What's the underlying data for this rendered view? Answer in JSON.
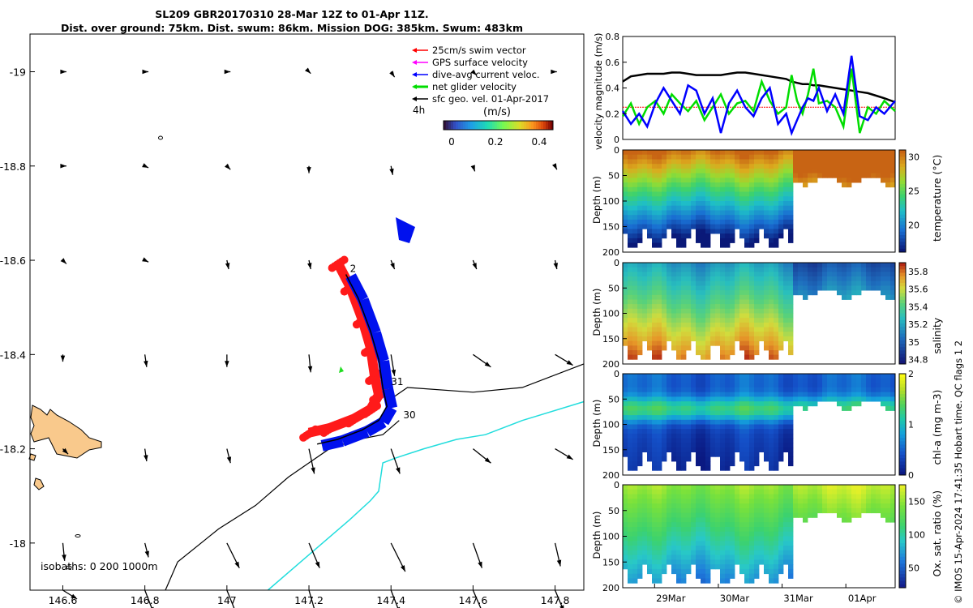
{
  "title": {
    "line1": "SL209 GBR20170310 28-Mar 12Z to 01-Apr 11Z.",
    "line2": "Dist. over ground: 75km. Dist. swum: 86km. Mission DOG: 385km. Swum: 483km"
  },
  "side_credit": "© IMOS 15-Apr-2024 17:41:35 Hobart time. QC flags 1  2",
  "chart_data": [
    {
      "type": "map",
      "name": "glider-track-map",
      "xlim": [
        146.52,
        147.87
      ],
      "ylim": [
        -19.08,
        -17.9
      ],
      "x_ticks": [
        146.6,
        146.8,
        147,
        147.2,
        147.4,
        147.6,
        147.8
      ],
      "x_tick_labels": [
        "146.6",
        "146.8",
        "147",
        "147.2",
        "147.4",
        "147.6",
        "147.8"
      ],
      "y_ticks": [
        -18,
        -18.2,
        -18.4,
        -18.6,
        -18.8,
        -19
      ],
      "y_tick_labels": [
        "-18",
        "-18.2",
        "-18.4",
        "-18.6",
        "-18.8",
        "-19"
      ],
      "legend": {
        "placement": "top-right",
        "entries": [
          {
            "label": "25cm/s swim vector",
            "color": "#ff0000"
          },
          {
            "label": "GPS surface velocity",
            "color": "#ff00ff"
          },
          {
            "label": "dive-avg current veloc.",
            "color": "#0000ff"
          },
          {
            "label": "net glider velocity",
            "color": "#00dd00"
          },
          {
            "label": "sfc geo. vel. 01-Apr-2017",
            "color": "#000000"
          }
        ],
        "interval_label": "4h"
      },
      "colorbar": {
        "title": "(m/s)",
        "min": 0,
        "max": 0.5,
        "tick_labels": [
          "0",
          "0.2",
          "0.4"
        ]
      },
      "isobaths_label": "isobaths: 0   200  1000m",
      "day_labels": [
        {
          "text": "30",
          "lon": 147.43,
          "lat": -18.265
        },
        {
          "text": "31",
          "lon": 147.4,
          "lat": -18.335
        },
        {
          "text": "2",
          "lon": 147.3,
          "lat": -18.575
        }
      ],
      "glider_track": [
        [
          147.22,
          -18.21
        ],
        [
          147.27,
          -18.22
        ],
        [
          147.33,
          -18.24
        ],
        [
          147.37,
          -18.26
        ],
        [
          147.39,
          -18.29
        ],
        [
          147.38,
          -18.33
        ],
        [
          147.37,
          -18.39
        ],
        [
          147.35,
          -18.45
        ],
        [
          147.32,
          -18.52
        ],
        [
          147.29,
          -18.57
        ]
      ],
      "geo_track_1": [
        [
          146.85,
          -17.9
        ],
        [
          146.88,
          -17.96
        ],
        [
          146.98,
          -18.03
        ],
        [
          147.07,
          -18.08
        ],
        [
          147.15,
          -18.14
        ],
        [
          147.2,
          -18.17
        ],
        [
          147.25,
          -18.2
        ],
        [
          147.32,
          -18.22
        ],
        [
          147.38,
          -18.23
        ],
        [
          147.42,
          -18.26
        ]
      ],
      "geo_track_2": [
        [
          147.39,
          -18.3
        ],
        [
          147.44,
          -18.33
        ],
        [
          147.6,
          -18.32
        ],
        [
          147.72,
          -18.33
        ],
        [
          147.87,
          -18.38
        ]
      ],
      "cyan_contour": [
        [
          147.1,
          -17.9
        ],
        [
          147.18,
          -17.96
        ],
        [
          147.26,
          -18.02
        ],
        [
          147.3,
          -18.05
        ],
        [
          147.35,
          -18.09
        ],
        [
          147.37,
          -18.11
        ],
        [
          147.38,
          -18.17
        ],
        [
          147.41,
          -18.18
        ],
        [
          147.48,
          -18.2
        ],
        [
          147.56,
          -18.22
        ],
        [
          147.63,
          -18.23
        ],
        [
          147.72,
          -18.26
        ],
        [
          147.87,
          -18.3
        ]
      ],
      "current_vectors": {
        "grid_lons": [
          146.6,
          146.8,
          147.0,
          147.2,
          147.4,
          147.6,
          147.8
        ],
        "grid_lats": [
          -17.9,
          -18.0,
          -18.2,
          -18.4,
          -18.6,
          -18.8,
          -19.0
        ],
        "u_rows": [
          [
            0.08,
            0.05,
            0.06,
            0.04,
            0.05,
            0.06,
            0.05
          ],
          [
            0.01,
            0.02,
            0.07,
            0.06,
            0.08,
            0.05,
            0.03
          ],
          [
            0.03,
            0.01,
            0.02,
            0.03,
            0.05,
            0.1,
            0.1
          ],
          [
            0.0,
            0.01,
            0.0,
            0.01,
            0.02,
            0.1,
            0.1
          ],
          [
            0.02,
            0.02,
            0.01,
            0.01,
            0.02,
            0.02,
            0.01
          ],
          [
            0.02,
            0.02,
            0.02,
            0.0,
            0.01,
            0.01,
            0.01
          ],
          [
            0.02,
            0.02,
            0.02,
            0.01,
            0.02,
            0.02,
            0.01
          ]
        ],
        "v_rows": [
          [
            -0.05,
            -0.13,
            -0.15,
            -0.14,
            -0.13,
            -0.14,
            -0.12
          ],
          [
            -0.1,
            -0.08,
            -0.14,
            -0.14,
            -0.16,
            -0.14,
            -0.13
          ],
          [
            -0.03,
            -0.07,
            -0.08,
            -0.14,
            -0.14,
            -0.08,
            -0.06
          ],
          [
            -0.04,
            -0.07,
            -0.07,
            -0.1,
            -0.12,
            -0.07,
            -0.06
          ],
          [
            -0.02,
            -0.01,
            -0.05,
            -0.05,
            -0.05,
            -0.05,
            -0.05
          ],
          [
            0.0,
            -0.01,
            -0.02,
            -0.04,
            -0.05,
            -0.03,
            -0.02
          ],
          [
            0.0,
            0.0,
            0.0,
            -0.01,
            -0.03,
            -0.02,
            0.0
          ]
        ]
      }
    },
    {
      "type": "line",
      "name": "velocity-magnitude",
      "ylabel": "velocity magnitude (m/s)",
      "ylim": [
        0,
        0.8
      ],
      "y_ticks": [
        0,
        0.2,
        0.4,
        0.6,
        0.8
      ],
      "y_tick_labels": [
        "0",
        "0.2",
        "0.4",
        "0.6",
        "0.8"
      ],
      "x": [
        0,
        0.03,
        0.06,
        0.09,
        0.12,
        0.15,
        0.18,
        0.21,
        0.24,
        0.27,
        0.3,
        0.33,
        0.36,
        0.39,
        0.42,
        0.45,
        0.48,
        0.51,
        0.54,
        0.57,
        0.6,
        0.62,
        0.64,
        0.66,
        0.68,
        0.7,
        0.72,
        0.75,
        0.78,
        0.81,
        0.84,
        0.87,
        0.9,
        0.93,
        0.96,
        1.0
      ],
      "series": [
        {
          "name": "sfc geo. vel.",
          "color": "#000000",
          "values": [
            0.45,
            0.49,
            0.5,
            0.51,
            0.51,
            0.51,
            0.52,
            0.52,
            0.51,
            0.5,
            0.5,
            0.5,
            0.5,
            0.51,
            0.52,
            0.52,
            0.51,
            0.5,
            0.49,
            0.48,
            0.47,
            0.45,
            0.44,
            0.43,
            0.43,
            0.42,
            0.42,
            0.41,
            0.4,
            0.39,
            0.38,
            0.37,
            0.36,
            0.34,
            0.32,
            0.29
          ]
        },
        {
          "name": "swim speed",
          "color": "#ff0000",
          "values": [
            0.25,
            0.25,
            0.25,
            0.25,
            0.25,
            0.25,
            0.25,
            0.25,
            0.25,
            0.25,
            0.25,
            0.25,
            0.25,
            0.25,
            0.25,
            0.25,
            0.25,
            0.25,
            0.25,
            0.25,
            0.25,
            0.25,
            0.25,
            0.25,
            0.25,
            0.25,
            0.25,
            0.25,
            0.25,
            0.25,
            0.25,
            0.25,
            0.25,
            0.25,
            0.25,
            0.25
          ]
        },
        {
          "name": "net glider velocity",
          "color": "#00dd00",
          "values": [
            0.18,
            0.28,
            0.12,
            0.25,
            0.3,
            0.2,
            0.35,
            0.28,
            0.22,
            0.3,
            0.15,
            0.25,
            0.35,
            0.2,
            0.28,
            0.3,
            0.22,
            0.45,
            0.3,
            0.2,
            0.25,
            0.5,
            0.3,
            0.2,
            0.35,
            0.55,
            0.28,
            0.3,
            0.25,
            0.1,
            0.55,
            0.05,
            0.25,
            0.2,
            0.3,
            0.22
          ]
        },
        {
          "name": "dive-avg current veloc.",
          "color": "#0000ff",
          "values": [
            0.22,
            0.12,
            0.2,
            0.1,
            0.28,
            0.4,
            0.3,
            0.2,
            0.42,
            0.38,
            0.2,
            0.32,
            0.05,
            0.28,
            0.38,
            0.25,
            0.18,
            0.32,
            0.4,
            0.12,
            0.2,
            0.05,
            0.15,
            0.25,
            0.32,
            0.3,
            0.4,
            0.22,
            0.35,
            0.2,
            0.65,
            0.18,
            0.15,
            0.25,
            0.2,
            0.3
          ]
        }
      ]
    },
    {
      "type": "heatmap",
      "name": "temperature-section",
      "ylabel": "Depth (m)",
      "ylim": [
        200,
        0
      ],
      "y_ticks": [
        0,
        50,
        100,
        150,
        200
      ],
      "y_tick_labels": [
        "0",
        "50",
        "100",
        "150",
        "200"
      ],
      "colorbar_label": "temperature (°C)",
      "colorbar_range": [
        16,
        31
      ],
      "colorbar_ticks": [
        20,
        25,
        30
      ],
      "colorbar_tick_labels": [
        "20",
        "25",
        "30"
      ]
    },
    {
      "type": "heatmap",
      "name": "salinity-section",
      "ylabel": "Depth (m)",
      "ylim": [
        200,
        0
      ],
      "y_ticks": [
        0,
        50,
        100,
        150,
        200
      ],
      "y_tick_labels": [
        "0",
        "50",
        "100",
        "150",
        "200"
      ],
      "colorbar_label": "salinity",
      "colorbar_range": [
        34.75,
        35.9
      ],
      "colorbar_ticks": [
        34.8,
        35,
        35.2,
        35.4,
        35.6,
        35.8
      ],
      "colorbar_tick_labels": [
        "34.8",
        "35",
        "35.2",
        "35.4",
        "35.6",
        "35.8"
      ]
    },
    {
      "type": "heatmap",
      "name": "chlorophyll-section",
      "ylabel": "Depth (m)",
      "ylim": [
        200,
        0
      ],
      "y_ticks": [
        0,
        50,
        100,
        150,
        200
      ],
      "y_tick_labels": [
        "0",
        "50",
        "100",
        "150",
        "200"
      ],
      "colorbar_label": "chl-a (mg m-3)",
      "colorbar_range": [
        0,
        2
      ],
      "colorbar_ticks": [
        0,
        1,
        2
      ],
      "colorbar_tick_labels": [
        "0",
        "1",
        "2"
      ]
    },
    {
      "type": "heatmap",
      "name": "oxygen-section",
      "ylabel": "Depth (m)",
      "ylim": [
        200,
        0
      ],
      "y_ticks": [
        0,
        50,
        100,
        150,
        200
      ],
      "y_tick_labels": [
        "0",
        "50",
        "100",
        "150",
        "200"
      ],
      "colorbar_label": "Ox. sat. ratio (%)",
      "colorbar_range": [
        20,
        175
      ],
      "colorbar_ticks": [
        50,
        100,
        150
      ],
      "colorbar_tick_labels": [
        "50",
        "100",
        "150"
      ],
      "x_tick_labels": [
        "29Mar",
        "30Mar",
        "31Mar",
        "01Apr"
      ],
      "x_tick_fractions": [
        0.117,
        0.351,
        0.585,
        0.819
      ]
    }
  ]
}
